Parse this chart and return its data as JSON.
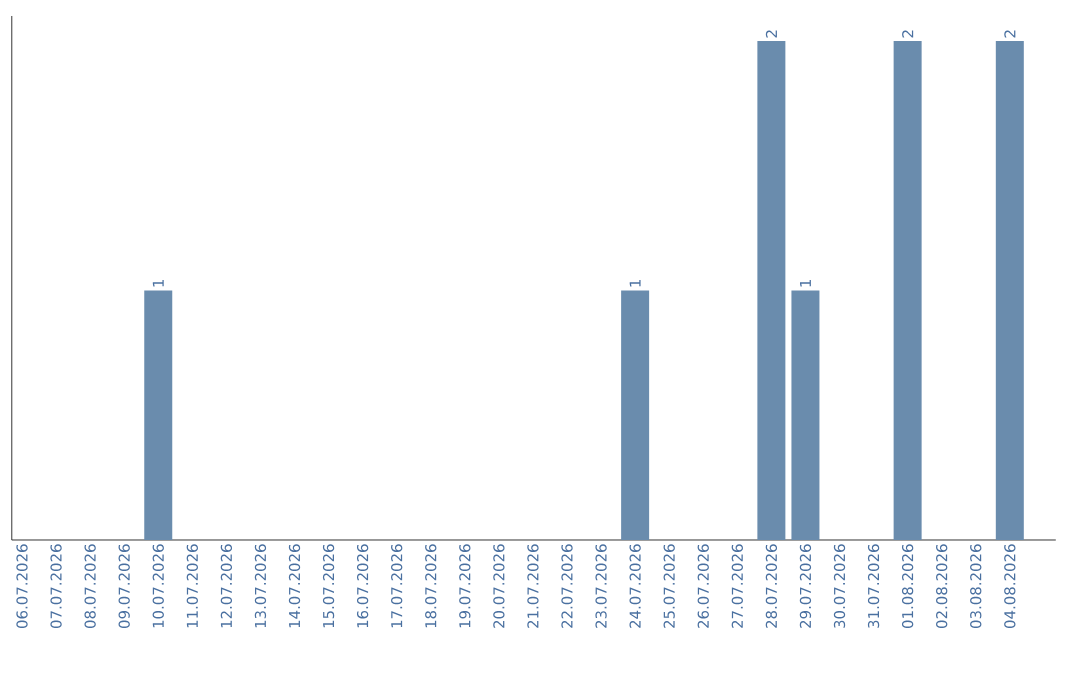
{
  "chart_data": {
    "type": "bar",
    "categories": [
      "06.07.2026",
      "07.07.2026",
      "08.07.2026",
      "09.07.2026",
      "10.07.2026",
      "11.07.2026",
      "12.07.2026",
      "13.07.2026",
      "14.07.2026",
      "15.07.2026",
      "16.07.2026",
      "17.07.2026",
      "18.07.2026",
      "19.07.2026",
      "20.07.2026",
      "21.07.2026",
      "22.07.2026",
      "23.07.2026",
      "24.07.2026",
      "25.07.2026",
      "26.07.2026",
      "27.07.2026",
      "28.07.2026",
      "29.07.2026",
      "30.07.2026",
      "31.07.2026",
      "01.08.2026",
      "02.08.2026",
      "03.08.2026",
      "04.08.2026"
    ],
    "values": [
      0,
      0,
      0,
      0,
      1,
      0,
      0,
      0,
      0,
      0,
      0,
      0,
      0,
      0,
      0,
      0,
      0,
      0,
      1,
      0,
      0,
      0,
      2,
      1,
      0,
      0,
      2,
      0,
      0,
      2
    ],
    "value_labels": [
      null,
      null,
      null,
      null,
      "1",
      null,
      null,
      null,
      null,
      null,
      null,
      null,
      null,
      null,
      null,
      null,
      null,
      null,
      "1",
      null,
      null,
      null,
      "2",
      "1",
      null,
      null,
      "2",
      null,
      null,
      "2"
    ],
    "color": "#6a8cad",
    "grid": false
  }
}
